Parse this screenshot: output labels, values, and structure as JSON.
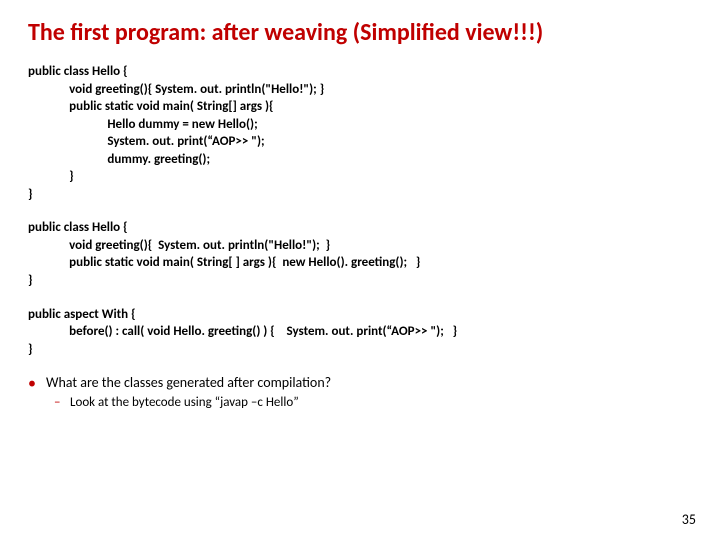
{
  "title": "The first program: after weaving (Simplified view!!!)",
  "code": {
    "block1": "public class Hello {\n              void greeting(){ System. out. println(\"Hello!\"); }\n              public static void main( String[] args ){\n                           Hello dummy = new Hello();\n                           System. out. print(“AOP>> \");\n                           dummy. greeting();\n              }\n}",
    "block2": "public class Hello {\n              void greeting(){  System. out. println(\"Hello!\");  }\n              public static void main( String[ ] args ){  new Hello(). greeting();   }\n}",
    "block3": "public aspect With {\n              before() : call( void Hello. greeting() ) {    System. out. print(“AOP>> \");   }\n}"
  },
  "bullet": {
    "main": "What are the classes generated after compilation?",
    "sub": "Look at the bytecode using “javap –c Hello”"
  },
  "pageNumber": "35",
  "colors": {
    "accent": "#c00000",
    "text": "#000000",
    "background": "#ffffff"
  }
}
